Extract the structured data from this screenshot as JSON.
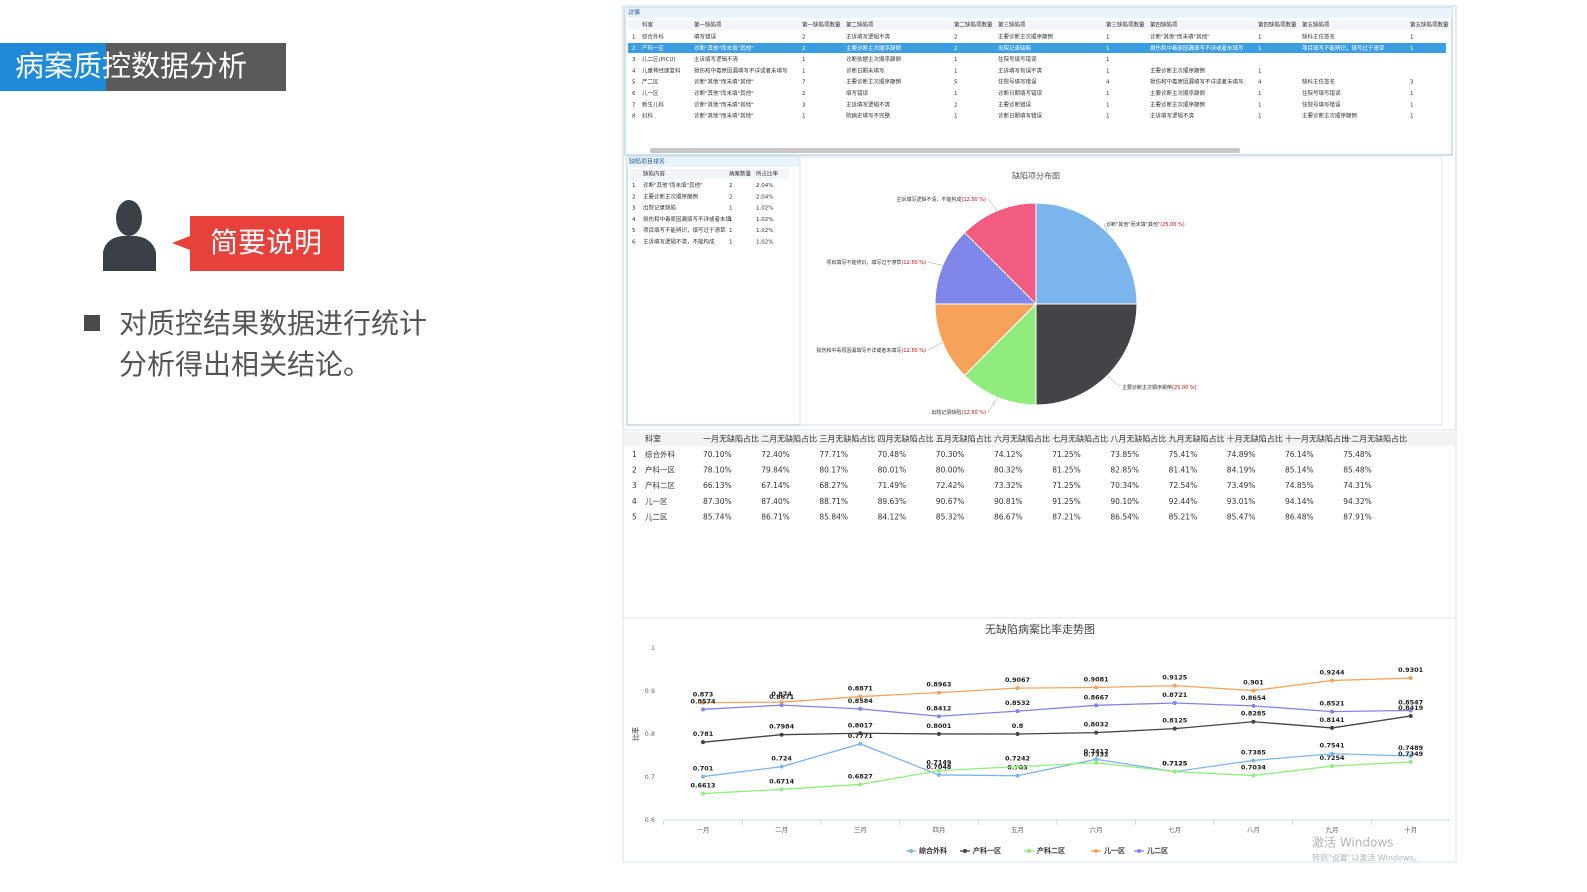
{
  "slide": {
    "title": "病案质控数据分析",
    "callout": "简要说明",
    "bullet_lines": [
      "对质控结果数据进行统计",
      "分析得出相关结论。"
    ]
  },
  "detail": {
    "title": "详情",
    "headers": [
      "科室",
      "第一缺陷项",
      "第一缺陷项数量",
      "第二缺陷项",
      "第二缺陷项数量",
      "第三缺陷项",
      "第三缺陷项数量",
      "第四缺陷项",
      "第四缺陷项数量",
      "第五缺陷项",
      "第五缺陷项数量"
    ],
    "rows": [
      [
        "1",
        "综合外科",
        "填写错误",
        "2",
        "主诉填写逻辑不清",
        "2",
        "主要诊断主次顺序颠倒",
        "1",
        "诊断\"其他\"而未填\"其他\"",
        "1",
        "缺科主任签名",
        "1"
      ],
      [
        "2",
        "产科一区",
        "诊断\"其他\"而未填\"其他\"",
        "2",
        "主要诊断主次顺序颠倒",
        "2",
        "出院记录缺陷",
        "1",
        "损伤和中毒原因漏填写不详或者未填写",
        "1",
        "项目填写不能辨识，填写过于潦草",
        "1"
      ],
      [
        "3",
        "儿二区(PICU)",
        "主诉填写逻辑不清",
        "1",
        "诊断依据主次顺序颠倒",
        "1",
        "住院号填写错误",
        "1"
      ],
      [
        "4",
        "儿童神经康复科",
        "损伤和中毒原因漏填写不详或者未填写",
        "1",
        "诊断日期未填写",
        "1",
        "主诉填写有误不清",
        "1",
        "主要诊断主次顺序颠倒",
        "1"
      ],
      [
        "5",
        "产二区",
        "诊断\"其他\"而未填\"其他\"",
        "7",
        "主要诊断主次顺序颠倒",
        "5",
        "住院号填写错误",
        "4",
        "损伤和中毒原因漏填写不详或者未填写",
        "4",
        "缺科主任签名",
        "3"
      ],
      [
        "6",
        "儿一区",
        "诊断\"其他\"而未填\"其他\"",
        "2",
        "填写错误",
        "1",
        "诊断日期填写错误",
        "1",
        "主要诊断主次顺序颠倒",
        "1",
        "住院号填写错误",
        "1"
      ],
      [
        "7",
        "新生儿科",
        "诊断\"其他\"而未填\"其他\"",
        "3",
        "主诉填写逻辑不清",
        "2",
        "主要诊断错误",
        "1",
        "主要诊断主次顺序颠倒",
        "1",
        "住院号填写错误",
        "1"
      ],
      [
        "8",
        "妇科",
        "诊断\"其他\"而未填\"其他\"",
        "1",
        "院病史填写不完整",
        "1",
        "诊断日期填写错误",
        "1",
        "主诉填写逻辑不清",
        "1",
        "主要诊断主次顺序颠倒",
        "1"
      ]
    ]
  },
  "rank": {
    "title": "缺陷项目排名",
    "headers": [
      "缺陷内容",
      "病案数量",
      "所占比率"
    ],
    "rows": [
      [
        "1",
        "诊断\"其他\"而未填\"其他\"",
        "2",
        "2.04%"
      ],
      [
        "2",
        "主要诊断主次顺序颠倒",
        "2",
        "2.04%"
      ],
      [
        "3",
        "出院记录缺陷",
        "1",
        "1.02%"
      ],
      [
        "4",
        "损伤和中毒原因漏填写不详或者未填",
        "1",
        "1.02%"
      ],
      [
        "5",
        "项目填写不能辨识，填写过于潦草",
        "1",
        "1.02%"
      ],
      [
        "6",
        "主诉填写逻辑不清，不能构成",
        "1",
        "1.02%"
      ]
    ]
  },
  "ratio_table": {
    "headers": [
      "科室",
      "一月无缺陷占比",
      "二月无缺陷占比",
      "三月无缺陷占比",
      "四月无缺陷占比",
      "五月无缺陷占比",
      "六月无缺陷占比",
      "七月无缺陷占比",
      "八月无缺陷占比",
      "九月无缺陷占比",
      "十月无缺陷占比",
      "十一月无缺陷占比",
      "十二月无缺陷占比"
    ],
    "rows": [
      [
        "1",
        "综合外科",
        "70.10%",
        "72.40%",
        "77.71%",
        "70.48%",
        "70.30%",
        "74.12%",
        "71.25%",
        "73.85%",
        "75.41%",
        "74.89%",
        "76.14%",
        "75.48%"
      ],
      [
        "2",
        "产科一区",
        "78.10%",
        "79.84%",
        "80.17%",
        "80.01%",
        "80.00%",
        "80.32%",
        "81.25%",
        "82.85%",
        "81.41%",
        "84.19%",
        "85.14%",
        "85.48%"
      ],
      [
        "3",
        "产科二区",
        "66.13%",
        "67.14%",
        "68.27%",
        "71.49%",
        "72.42%",
        "73.32%",
        "71.25%",
        "70.34%",
        "72.54%",
        "73.49%",
        "74.85%",
        "74.31%"
      ],
      [
        "4",
        "儿一区",
        "87.30%",
        "87.40%",
        "88.71%",
        "89.63%",
        "90.67%",
        "90.81%",
        "91.25%",
        "90.10%",
        "92.44%",
        "93.01%",
        "94.14%",
        "94.32%"
      ],
      [
        "5",
        "儿二区",
        "85.74%",
        "86.71%",
        "85.84%",
        "84.12%",
        "85.32%",
        "86.67%",
        "87.21%",
        "86.54%",
        "85.21%",
        "85.47%",
        "86.48%",
        "87.91%"
      ]
    ]
  },
  "watermark": [
    "激活 Windows",
    "转到\"设置\"以激活 Windows。"
  ],
  "chart_data": [
    {
      "type": "pie",
      "title": "缺陷项分布图",
      "categories": [
        "诊断\"其他\"而未填\"其他\"",
        "主要诊断主次顺序颠倒",
        "出院记录缺陷",
        "损伤和中毒原因漏填写不详或者未填写",
        "项目填写不能辨识，填写过于潦草",
        "主诉填写逻辑不清，不能构成"
      ],
      "values": [
        25,
        25,
        12.5,
        12.5,
        12.5,
        12.5
      ],
      "value_labels": [
        "(25.00 %)",
        "(25.00 %)",
        "(12.50 %)",
        "(12.50 %)",
        "(12.50 %)",
        "(12.50 %)"
      ],
      "colors": [
        "#7cb5ec",
        "#434348",
        "#90ed7d",
        "#f7a35c",
        "#8085e9",
        "#f15c80"
      ]
    },
    {
      "type": "line",
      "title": "无缺陷病案比率走势图",
      "y_label": "比率",
      "categories": [
        "一月",
        "二月",
        "三月",
        "四月",
        "五月",
        "六月",
        "七月",
        "八月",
        "九月",
        "十月"
      ],
      "ylim": [
        0.6,
        1
      ],
      "yticks": [
        0.6,
        0.7,
        0.8,
        0.9,
        1
      ],
      "grid": false,
      "series": [
        {
          "name": "综合外科",
          "color": "#7cb5ec",
          "values": [
            0.701,
            0.724,
            0.7771,
            0.7048,
            0.703,
            0.7412,
            0.7125,
            0.7385,
            0.7541,
            0.7489
          ]
        },
        {
          "name": "产科一区",
          "color": "#434348",
          "values": [
            0.781,
            0.7984,
            0.8017,
            0.8001,
            0.8,
            0.8032,
            0.8125,
            0.8285,
            0.8141,
            0.8419
          ]
        },
        {
          "name": "产科二区",
          "color": "#90ed7d",
          "values": [
            0.6613,
            0.6714,
            0.6827,
            0.7149,
            0.7242,
            0.7332,
            0.7125,
            0.7034,
            0.7254,
            0.7349
          ]
        },
        {
          "name": "儿一区",
          "color": "#f7a35c",
          "values": [
            0.873,
            0.874,
            0.8871,
            0.8963,
            0.9067,
            0.9081,
            0.9125,
            0.901,
            0.9244,
            0.9301
          ]
        },
        {
          "name": "儿二区",
          "color": "#8085e9",
          "values": [
            0.8574,
            0.8671,
            0.8584,
            0.8412,
            0.8532,
            0.8667,
            0.8721,
            0.8654,
            0.8521,
            0.8547
          ]
        }
      ]
    }
  ]
}
